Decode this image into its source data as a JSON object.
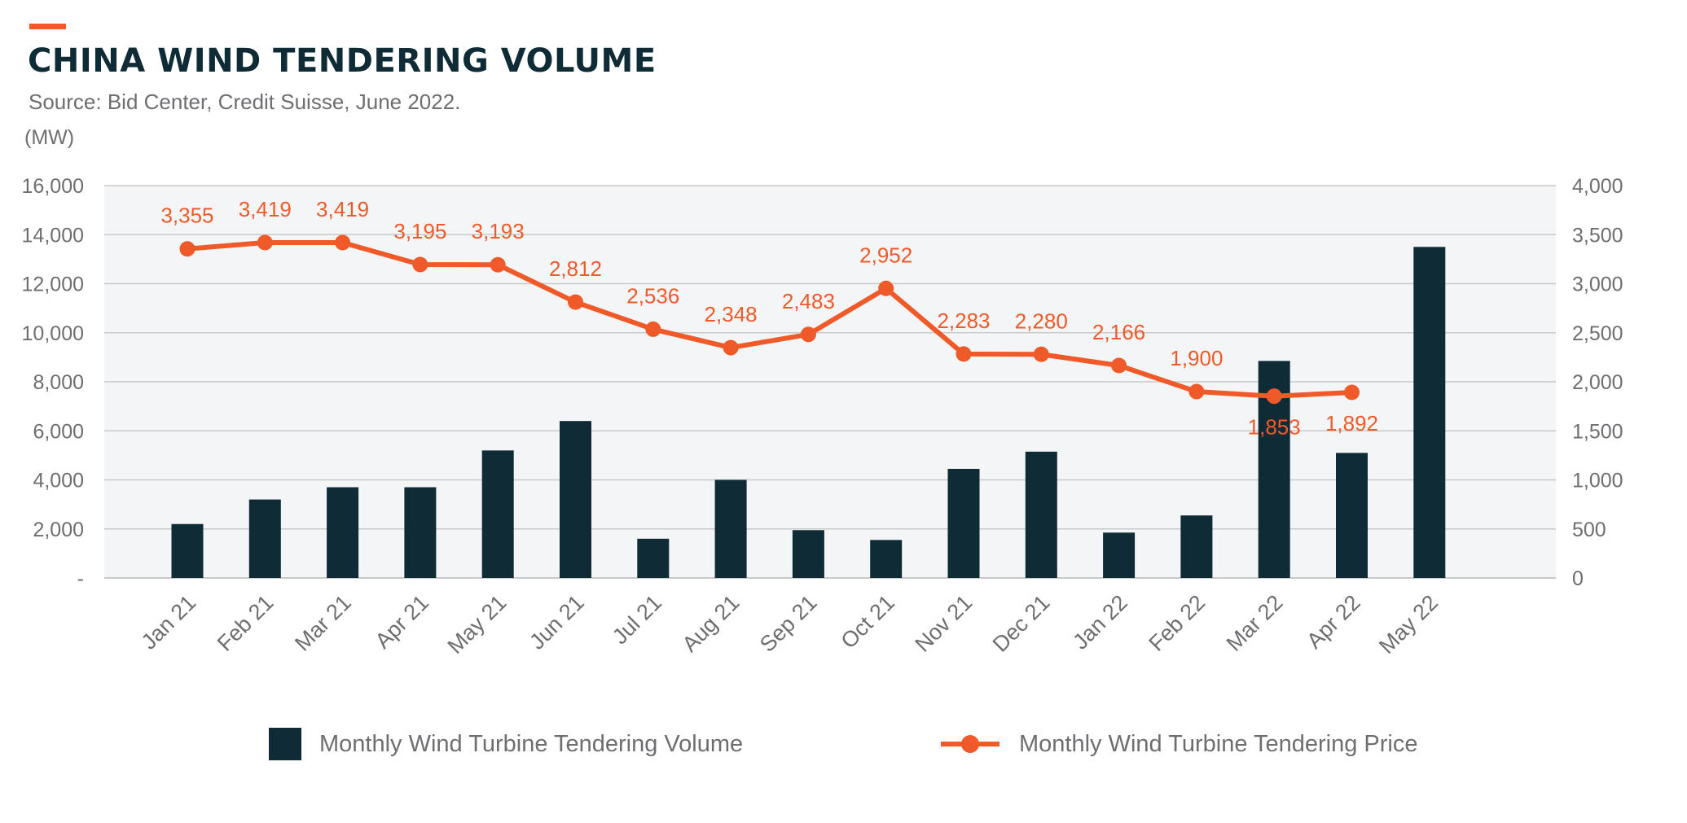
{
  "header": {
    "title": "CHINA WIND TENDERING VOLUME",
    "source": "Source: Bid Center, Credit Suisse, June 2022.",
    "unit_label": "(MW)"
  },
  "colors": {
    "accent": "#f05a28",
    "bar": "#0f2c36",
    "plot_bg": "#f4f5f6",
    "grid": "#c9c9c9",
    "tick_text": "#6d6e71"
  },
  "chart_data": {
    "type": "bar",
    "categories": [
      "Jan 21",
      "Feb  21",
      "Mar 21",
      "Apr 21",
      "May 21",
      "Jun 21",
      "Jul 21",
      "Aug 21",
      "Sep 21",
      "Oct 21",
      "Nov 21",
      "Dec 21",
      "Jan 22",
      "Feb 22",
      "Mar 22",
      "Apr 22",
      "May 22"
    ],
    "series": [
      {
        "name": "Monthly Wind Turbine Tendering Volume",
        "type": "bar",
        "axis": "left",
        "values": [
          2200,
          3200,
          3700,
          3700,
          5200,
          6400,
          1600,
          4000,
          1950,
          1550,
          4450,
          5150,
          1850,
          2550,
          8850,
          5100,
          13500
        ]
      },
      {
        "name": "Monthly Wind Turbine Tendering Price",
        "type": "line",
        "axis": "right",
        "values": [
          3355,
          3419,
          3419,
          3195,
          3193,
          2812,
          2536,
          2348,
          2483,
          2952,
          2283,
          2280,
          2166,
          1900,
          1853,
          1892,
          null
        ],
        "labels": [
          "3,355",
          "3,419",
          "3,419",
          "3,195",
          "3,193",
          "2,812",
          "2,536",
          "2,348",
          "2,483",
          "2,952",
          "2,283",
          "2,280",
          "2,166",
          "1,900",
          "1,853",
          "1,892",
          ""
        ],
        "label_position": [
          "above",
          "above",
          "above",
          "above",
          "above",
          "above",
          "above",
          "above",
          "above",
          "above",
          "above",
          "above",
          "above",
          "above",
          "below",
          "below",
          "above"
        ]
      }
    ],
    "y_left": {
      "ylim": [
        0,
        16000
      ],
      "ticks": [
        0,
        2000,
        4000,
        6000,
        8000,
        10000,
        12000,
        14000,
        16000
      ],
      "tick_labels": [
        "-",
        "2,000",
        "4,000",
        "6,000",
        "8,000",
        "10,000",
        "12,000",
        "14,000",
        "16,000"
      ]
    },
    "y_right": {
      "ylim": [
        0,
        4000
      ],
      "ticks": [
        0,
        500,
        1000,
        1500,
        2000,
        2500,
        3000,
        3500,
        4000
      ],
      "tick_labels": [
        "0",
        "500",
        "1,000",
        "1,500",
        "2,000",
        "2,500",
        "3,000",
        "3,500",
        "4,000"
      ]
    },
    "grid": true,
    "legend_position": "bottom"
  }
}
